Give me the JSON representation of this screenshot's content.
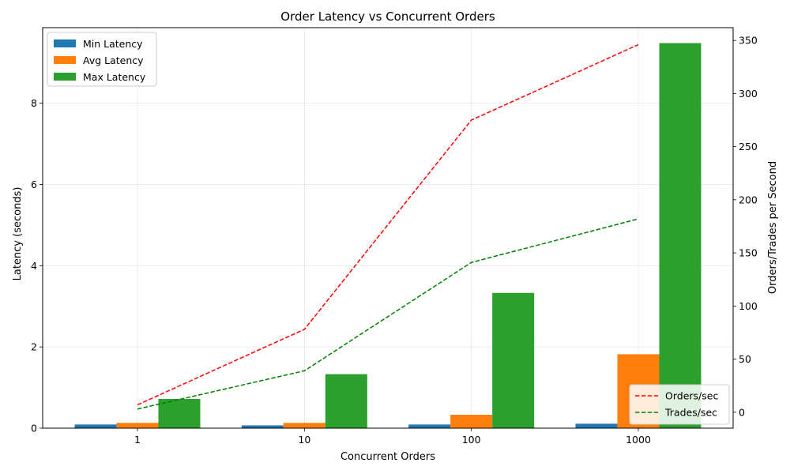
{
  "chart_data": {
    "type": "bar",
    "title": "Order Latency vs Concurrent Orders",
    "xlabel": "Concurrent Orders",
    "ylabel": "Latency (seconds)",
    "y2label": "Orders/Trades per Second",
    "categories": [
      "1",
      "10",
      "100",
      "1000"
    ],
    "ylim": [
      0,
      9.86
    ],
    "yticks": [
      0,
      2,
      4,
      6,
      8
    ],
    "y2lim": [
      -15,
      362
    ],
    "y2ticks": [
      0,
      50,
      100,
      150,
      200,
      250,
      300,
      350
    ],
    "grid": true,
    "series": [
      {
        "name": "Min Latency",
        "kind": "bar",
        "axis": "left",
        "color": "#1f77b4",
        "values": [
          0.09,
          0.07,
          0.09,
          0.11
        ]
      },
      {
        "name": "Avg Latency",
        "kind": "bar",
        "axis": "left",
        "color": "#ff7f0e",
        "values": [
          0.13,
          0.13,
          0.33,
          1.82
        ]
      },
      {
        "name": "Max Latency",
        "kind": "bar",
        "axis": "left",
        "color": "#2ca02c",
        "values": [
          0.72,
          1.33,
          3.33,
          9.48
        ]
      },
      {
        "name": "Orders/sec",
        "kind": "line",
        "axis": "right",
        "style": "dashed",
        "color": "#ff0000",
        "values": [
          7,
          78,
          275,
          346
        ]
      },
      {
        "name": "Trades/sec",
        "kind": "line",
        "axis": "right",
        "style": "dashed",
        "color": "#008000",
        "values": [
          3,
          39,
          141,
          182
        ]
      }
    ],
    "legend_bars_position": "upper-left",
    "legend_lines_position": "lower-right"
  }
}
